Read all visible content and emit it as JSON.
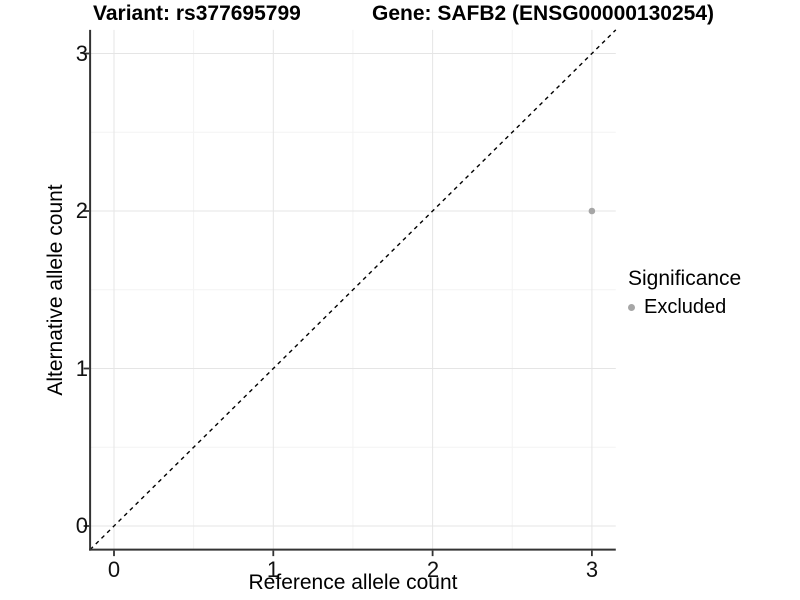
{
  "header": {
    "variant_title": "Variant: rs377695799",
    "gene_title": "Gene: SAFB2 (ENSG00000130254)"
  },
  "chart_data": {
    "type": "scatter",
    "xlabel": "Reference allele count",
    "ylabel": "Alternative allele count",
    "xlim": [
      -0.15,
      3.15
    ],
    "ylim": [
      -0.15,
      3.15
    ],
    "xticks": [
      0,
      1,
      2,
      3
    ],
    "yticks": [
      0,
      1,
      2,
      3
    ],
    "xtick_labels": [
      "0",
      "1",
      "2",
      "3"
    ],
    "ytick_labels": [
      "0",
      "1",
      "2",
      "3"
    ],
    "minor_xticks": [
      0.5,
      1.5,
      2.5
    ],
    "minor_yticks": [
      0.5,
      1.5,
      2.5
    ],
    "grid": {
      "major": true,
      "minor": true
    },
    "series": [
      {
        "name": "Excluded",
        "color": "#a6a6a6",
        "points": [
          {
            "x": 3,
            "y": 2
          }
        ]
      }
    ],
    "reference_line": {
      "kind": "abline",
      "slope": 1,
      "intercept": 0,
      "style": "dashed",
      "color": "#000000"
    },
    "legend": {
      "title": "Significance",
      "position": "right",
      "entries": [
        {
          "label": "Excluded",
          "color": "#a6a6a6"
        }
      ]
    }
  },
  "colors": {
    "background": "#ffffff",
    "axis_line": "#333333",
    "tick_mark": "#333333",
    "grid_major": "#e5e5e5",
    "grid_minor": "#f3f3f3",
    "point": "#a6a6a6",
    "text": "#000000"
  }
}
